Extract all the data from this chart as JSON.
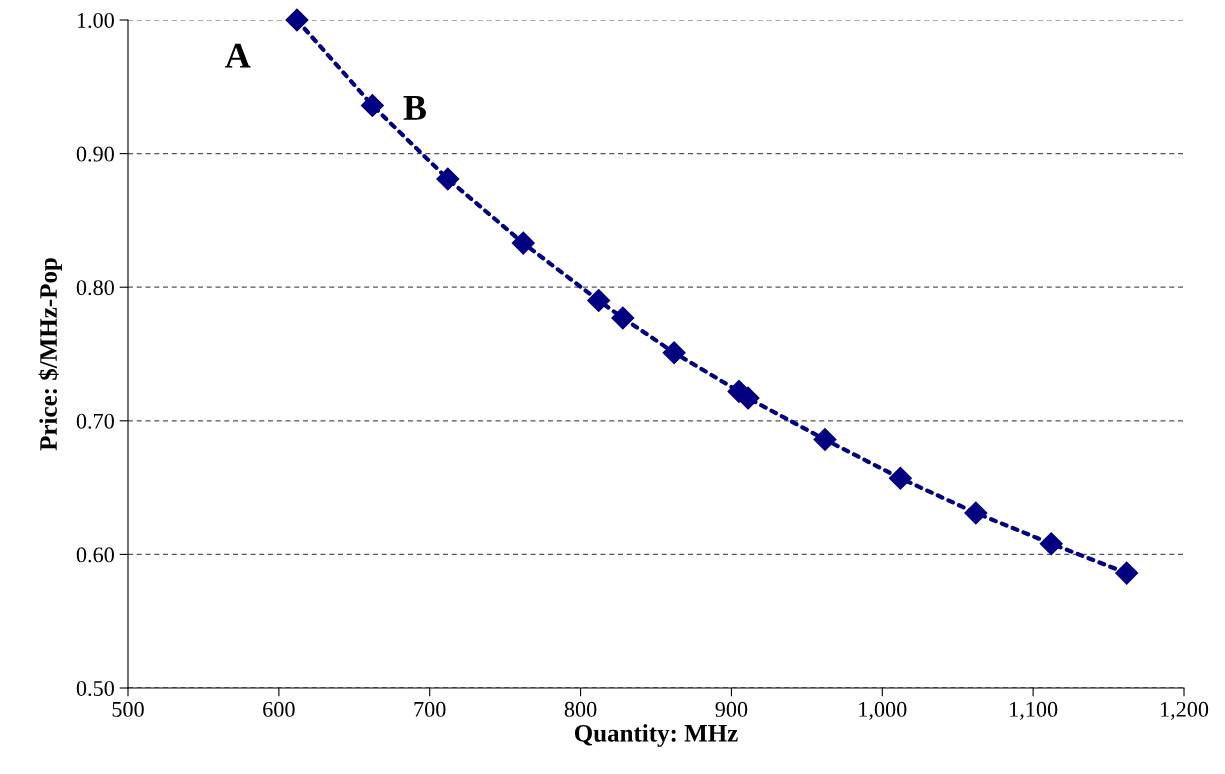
{
  "chart_data": {
    "type": "line",
    "xlabel": "Quantity: MHz",
    "ylabel": "Price: $/MHz-Pop",
    "series": [
      {
        "color": "#000080",
        "x": [
          612,
          662,
          712,
          762,
          812,
          828,
          862,
          905,
          911,
          962,
          1012,
          1062,
          1112,
          1162
        ],
        "values": [
          1.0,
          0.936,
          0.881,
          0.833,
          0.79,
          0.777,
          0.751,
          0.722,
          0.717,
          0.686,
          0.657,
          0.631,
          0.608,
          0.586
        ]
      }
    ],
    "marker": "diamond",
    "line_style": "dotted",
    "grid": "y",
    "xlim": [
      500,
      1200
    ],
    "xticks": [
      500,
      600,
      700,
      800,
      900,
      {
        "value": 1000,
        "label": "1,000"
      },
      {
        "value": 1100,
        "label": "1,100"
      },
      {
        "value": 1200,
        "label": "1,200"
      }
    ],
    "ylim": [
      0.5,
      1.0
    ],
    "yticks": [
      {
        "value": 0.5,
        "label": "0.50"
      },
      {
        "value": 0.6,
        "label": "0.60"
      },
      {
        "value": 0.7,
        "label": "0.70"
      },
      {
        "value": 0.8,
        "label": "0.80"
      },
      {
        "value": 0.9,
        "label": "0.90"
      },
      {
        "value": 1.0,
        "label": "1.00"
      }
    ],
    "annotations": [
      {
        "text": "A",
        "x": 612,
        "y": 1.0
      },
      {
        "text": "B",
        "x": 662,
        "y": 0.936
      }
    ]
  }
}
